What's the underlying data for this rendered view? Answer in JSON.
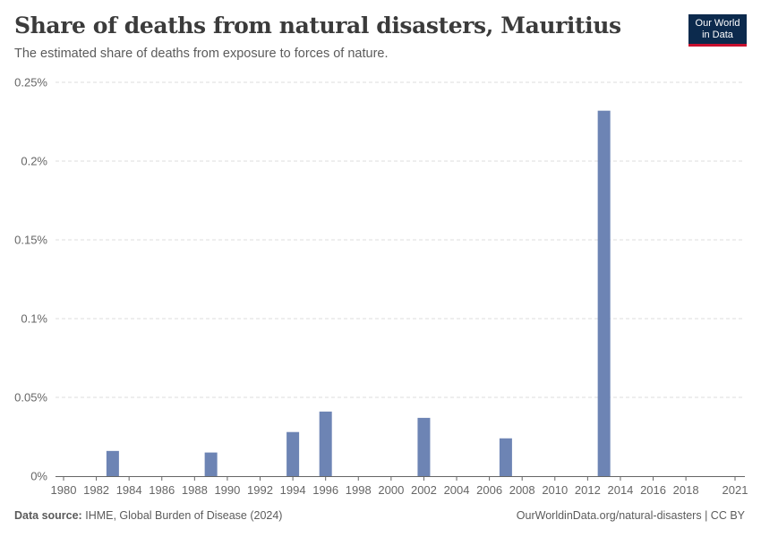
{
  "header": {
    "title": "Share of deaths from natural disasters, Mauritius",
    "subtitle": "The estimated share of deaths from exposure to forces of nature."
  },
  "logo": {
    "line1": "Our World",
    "line2": "in Data"
  },
  "footer": {
    "source_label": "Data source:",
    "source_text": "IHME, Global Burden of Disease (2024)",
    "url_text": "OurWorldinData.org/natural-disasters | CC BY"
  },
  "colors": {
    "bar": "#6d84b4",
    "grid": "#dddddd",
    "axis": "#666666",
    "logo_bg": "#0c2a4d",
    "logo_accent": "#c8102e"
  },
  "chart_data": {
    "type": "bar",
    "title": "Share of deaths from natural disasters, Mauritius",
    "subtitle": "The estimated share of deaths from exposure to forces of nature.",
    "xlabel": "",
    "ylabel": "",
    "xlim": [
      1980,
      2021
    ],
    "ylim": [
      0,
      0.25
    ],
    "y_unit": "%",
    "grid": "horizontal dashed",
    "x_ticks": [
      "1980",
      "1982",
      "1984",
      "1986",
      "1988",
      "1990",
      "1992",
      "1994",
      "1996",
      "1998",
      "2000",
      "2002",
      "2004",
      "2006",
      "2008",
      "2010",
      "2012",
      "2014",
      "2016",
      "2018",
      "2021"
    ],
    "y_ticks": [
      "0%",
      "0.05%",
      "0.1%",
      "0.15%",
      "0.2%",
      "0.25%"
    ],
    "y_tick_values": [
      0,
      0.05,
      0.1,
      0.15,
      0.2,
      0.25
    ],
    "x": [
      1983,
      1989,
      1994,
      1996,
      2002,
      2007,
      2013
    ],
    "values": [
      0.016,
      0.015,
      0.028,
      0.041,
      0.037,
      0.024,
      0.232
    ]
  }
}
